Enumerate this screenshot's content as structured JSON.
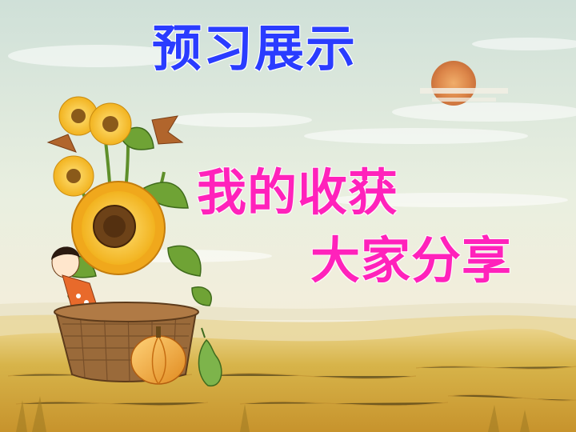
{
  "slide": {
    "title": "预习展示",
    "line1": "我的收获",
    "line2": "大家分享"
  },
  "colors": {
    "title": "#2a3cff",
    "subtitle": "#ff22bb",
    "sky": "#dfe9d4",
    "field": "#d9b343"
  },
  "illustration": {
    "elements": [
      "sun",
      "clouds",
      "sunflowers",
      "basket",
      "girl",
      "pumpkin",
      "gourd",
      "field"
    ]
  }
}
